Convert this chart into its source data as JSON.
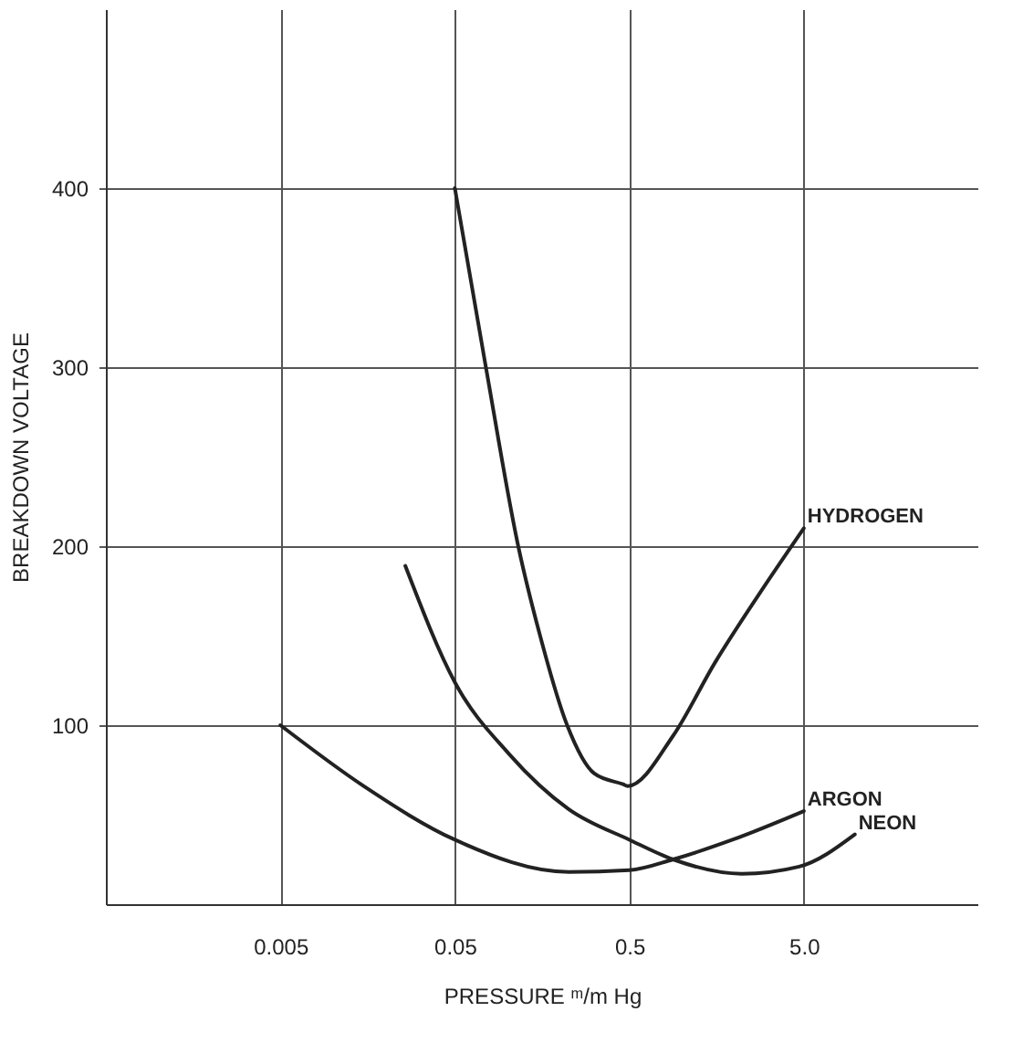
{
  "chart_data": {
    "type": "line",
    "xlabel": "PRESSURE ᵐ/m Hg",
    "ylabel": "BREAKDOWN VOLTAGE",
    "log": "x",
    "xlim": [
      0.0005,
      50
    ],
    "ylim": [
      0,
      500
    ],
    "xticks": [
      0.005,
      0.05,
      0.5,
      {
        "value": 5,
        "label": "5.0"
      }
    ],
    "yticks": [
      100,
      200,
      300,
      400
    ],
    "grid": true,
    "legend": false,
    "marker": "none",
    "line_style": "solid",
    "series": [
      {
        "name": "HYDROGEN",
        "color": "#222222",
        "x": [
          0.05,
          0.075,
          0.116,
          0.153,
          0.22,
          0.315,
          0.46,
          0.49,
          0.89,
          1.55,
          2.72,
          5.0
        ],
        "values": [
          400,
          301,
          199,
          151,
          100,
          73,
          67,
          66,
          94,
          135,
          172,
          210
        ]
      },
      {
        "name": "ARGON",
        "color": "#222222",
        "x": [
          0.005,
          0.015,
          0.05,
          0.225,
          0.5,
          0.89,
          1.95,
          5.0
        ],
        "values": [
          100,
          66,
          36,
          18,
          19,
          25,
          36,
          52
        ]
      },
      {
        "name": "NEON",
        "color": "#222222",
        "x": [
          0.026,
          0.05,
          0.102,
          0.225,
          0.5,
          0.89,
          2.2,
          4.7,
          9.8
        ],
        "values": [
          189,
          124,
          84,
          53,
          36,
          25,
          17,
          21,
          39
        ]
      }
    ]
  }
}
